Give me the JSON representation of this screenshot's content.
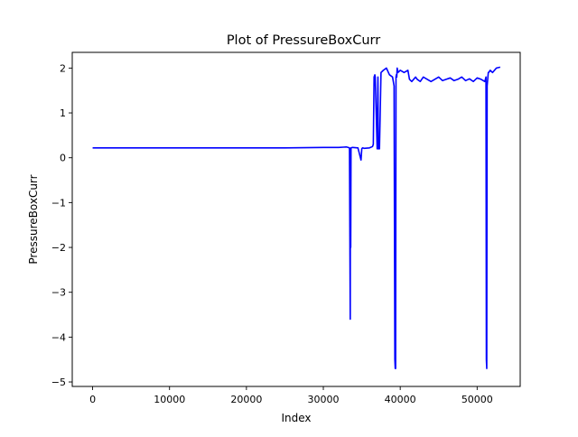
{
  "chart_data": {
    "type": "line",
    "title": "Plot of PressureBoxCurr",
    "xlabel": "Index",
    "ylabel": "PressureBoxCurr",
    "xlim": [
      -2650,
      55600
    ],
    "ylim": [
      -5.1,
      2.35
    ],
    "xticks": [
      0,
      10000,
      20000,
      30000,
      40000,
      50000
    ],
    "xtick_labels": [
      "0",
      "10000",
      "20000",
      "30000",
      "40000",
      "50000"
    ],
    "yticks": [
      2,
      1,
      0,
      -1,
      -2,
      -3,
      -4,
      -5
    ],
    "ytick_labels": [
      "2",
      "1",
      "0",
      "−1",
      "−2",
      "−3",
      "−4",
      "−5"
    ],
    "grid": false,
    "series": [
      {
        "color": "#0000ff",
        "x": [
          0,
          5000,
          10000,
          15000,
          20000,
          25000,
          30000,
          32000,
          33000,
          33400,
          33500,
          33520,
          33560,
          33600,
          33800,
          34500,
          34900,
          35000,
          35100,
          35300,
          36000,
          36400,
          36500,
          36600,
          36700,
          36750,
          37000,
          37100,
          37150,
          37300,
          37500,
          37800,
          38200,
          38600,
          39000,
          39200,
          39300,
          39350,
          39400,
          39450,
          39500,
          39550,
          39600,
          39700,
          40000,
          40500,
          41000,
          41200,
          41500,
          42000,
          42200,
          42600,
          43000,
          43500,
          44000,
          44500,
          45000,
          45500,
          46000,
          46500,
          47000,
          47500,
          48000,
          48500,
          49000,
          49500,
          50000,
          50500,
          51000,
          51150,
          51200,
          51250,
          51300,
          51350,
          51400,
          51450,
          51500,
          51700,
          52000,
          52500,
          53000
        ],
        "y": [
          0.22,
          0.22,
          0.22,
          0.22,
          0.22,
          0.22,
          0.23,
          0.23,
          0.24,
          0.22,
          -3.6,
          0.2,
          -2.0,
          0.22,
          0.23,
          0.22,
          -0.05,
          0.2,
          0.22,
          0.21,
          0.22,
          0.25,
          0.3,
          1.8,
          1.85,
          1.8,
          0.2,
          1.8,
          0.2,
          0.2,
          1.9,
          1.95,
          2.0,
          1.85,
          1.8,
          1.6,
          -4.5,
          -4.7,
          -4.7,
          1.8,
          1.85,
          1.8,
          2.0,
          1.9,
          1.95,
          1.9,
          1.95,
          1.75,
          1.7,
          1.8,
          1.75,
          1.7,
          1.8,
          1.75,
          1.7,
          1.75,
          1.8,
          1.72,
          1.75,
          1.78,
          1.72,
          1.75,
          1.8,
          1.72,
          1.76,
          1.7,
          1.78,
          1.75,
          1.7,
          1.8,
          -4.5,
          -4.7,
          1.6,
          1.7,
          1.8,
          1.9,
          1.9,
          1.95,
          1.9,
          2.0,
          2.02
        ]
      }
    ]
  }
}
